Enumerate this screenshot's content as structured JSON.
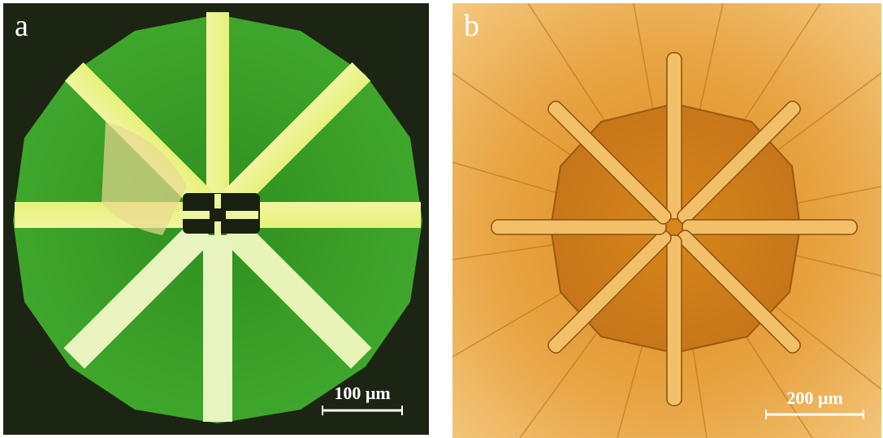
{
  "panels": [
    {
      "label": "a",
      "scale_bar": "100 μm"
    },
    {
      "label": "b",
      "scale_bar": "200 μm"
    }
  ]
}
